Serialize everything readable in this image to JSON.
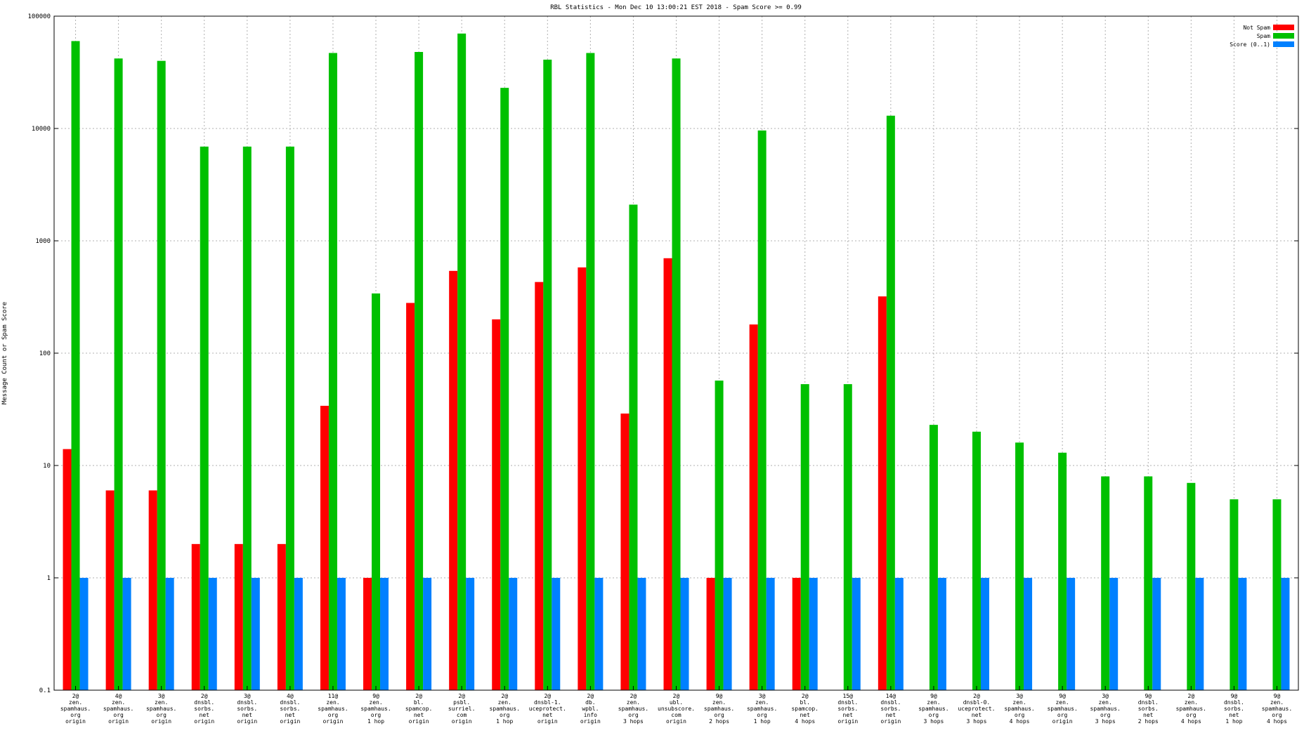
{
  "chart_data": {
    "type": "bar",
    "title": "RBL Statistics - Mon Dec 10 13:00:21 EST 2018 - Spam Score >= 0.99",
    "xlabel": "",
    "ylabel": "Message Count or Spam Score",
    "yscale": "log",
    "ylim": [
      0.1,
      100000
    ],
    "yticks": [
      "0.1",
      "1",
      "10",
      "100",
      "1000",
      "10000",
      "100000"
    ],
    "grid": true,
    "legend_position": "top-right",
    "categories": [
      "2@\nzen.\nspamhaus.\norg\norigin",
      "4@\nzen.\nspamhaus.\norg\norigin",
      "3@\nzen.\nspamhaus.\norg\norigin",
      "2@\ndnsbl.\nsorbs.\nnet\norigin",
      "3@\ndnsbl.\nsorbs.\nnet\norigin",
      "4@\ndnsbl.\nsorbs.\nnet\norigin",
      "11@\nzen.\nspamhaus.\norg\norigin",
      "9@\nzen.\nspamhaus.\norg\n1 hop",
      "2@\nbl.\nspamcop.\nnet\norigin",
      "2@\npsbl.\nsurriel.\ncom\norigin",
      "2@\nzen.\nspamhaus.\norg\n1 hop",
      "2@\ndnsbl-1.\nuceprotect.\nnet\norigin",
      "2@\ndb.\nwpbl.\ninfo\norigin",
      "2@\nzen.\nspamhaus.\norg\n3 hops",
      "2@\nubl.\nunsubscore.\ncom\norigin",
      "9@\nzen.\nspamhaus.\norg\n2 hops",
      "3@\nzen.\nspamhaus.\norg\n1 hop",
      "2@\nbl.\nspamcop.\nnet\n4 hops",
      "15@\ndnsbl.\nsorbs.\nnet\norigin",
      "14@\ndnsbl.\nsorbs.\nnet\norigin",
      "9@\nzen.\nspamhaus.\norg\n3 hops",
      "2@\ndnsbl-0.\nuceprotect.\nnet\n3 hops",
      "3@\nzen.\nspamhaus.\norg\n4 hops",
      "9@\nzen.\nspamhaus.\norg\norigin",
      "3@\nzen.\nspamhaus.\norg\n3 hops",
      "9@\ndnsbl.\nsorbs.\nnet\n2 hops",
      "2@\nzen.\nspamhaus.\norg\n4 hops",
      "9@\ndnsbl.\nsorbs.\nnet\n1 hop",
      "9@\nzen.\nspamhaus.\norg\n4 hops"
    ],
    "series": [
      {
        "name": "Not Spam",
        "color": "#ff0000",
        "values": [
          14,
          6,
          6,
          2,
          2,
          2,
          34,
          1,
          280,
          540,
          200,
          430,
          580,
          29,
          700,
          1,
          180,
          1,
          0,
          320,
          0,
          0,
          0,
          0,
          0,
          0,
          0,
          0,
          0
        ]
      },
      {
        "name": "Spam",
        "color": "#00c000",
        "values": [
          60000,
          42000,
          40000,
          6900,
          6900,
          6900,
          47000,
          340,
          48000,
          70000,
          23000,
          41000,
          47000,
          2100,
          42000,
          57,
          9600,
          53,
          53,
          13000,
          23,
          20,
          16,
          13,
          8,
          8,
          7,
          5,
          5
        ]
      },
      {
        "name": "Score (0..1)",
        "color": "#0080ff",
        "values": [
          1,
          1,
          1,
          1,
          1,
          1,
          1,
          1,
          1,
          1,
          1,
          1,
          1,
          1,
          1,
          1,
          1,
          1,
          1,
          1,
          1,
          1,
          1,
          1,
          1,
          1,
          1,
          1,
          1
        ]
      }
    ]
  }
}
